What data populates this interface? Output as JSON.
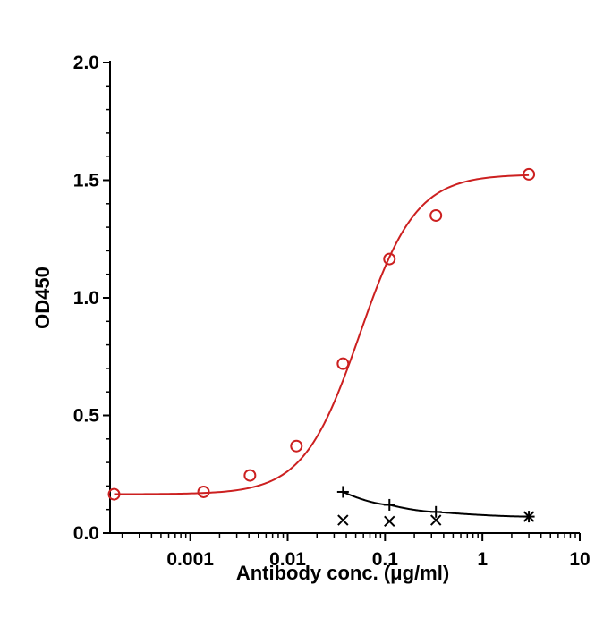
{
  "chart_data": {
    "type": "scatter",
    "title": "",
    "xlabel": "Antibody conc. (μg/ml)",
    "ylabel": "OD450",
    "x_scale": "log",
    "xlim": [
      0.00015,
      10
    ],
    "ylim": [
      0,
      2.0
    ],
    "grid": false,
    "x_ticks": [
      {
        "value": 0.001,
        "label": "0.001"
      },
      {
        "value": 0.01,
        "label": "0.01"
      },
      {
        "value": 0.1,
        "label": "0.1"
      },
      {
        "value": 1,
        "label": "1"
      },
      {
        "value": 10,
        "label": "10"
      }
    ],
    "y_ticks": [
      {
        "value": 0.0,
        "label": "0.0"
      },
      {
        "value": 0.5,
        "label": "0.5"
      },
      {
        "value": 1.0,
        "label": "1.0"
      },
      {
        "value": 1.5,
        "label": "1.5"
      },
      {
        "value": 2.0,
        "label": "2.0"
      }
    ],
    "series": [
      {
        "marker": "circle",
        "color": "#cc2020",
        "x": [
          0.000165,
          0.00137,
          0.0041,
          0.0123,
          0.037,
          0.111,
          0.333,
          3.0
        ],
        "y": [
          0.165,
          0.175,
          0.245,
          0.37,
          0.72,
          1.165,
          1.35,
          1.525
        ],
        "fit": {
          "bottom": 0.165,
          "top": 1.525,
          "ec50": 0.055,
          "hill": 1.5
        }
      },
      {
        "marker": "cross",
        "color": "#000000",
        "x": [
          0.037,
          0.111,
          0.333,
          3.0
        ],
        "y": [
          0.055,
          0.05,
          0.055,
          0.07
        ]
      },
      {
        "marker": "plus",
        "color": "#000000",
        "x": [
          0.037,
          0.111,
          0.333,
          3.0
        ],
        "y": [
          0.175,
          0.12,
          0.09,
          0.07
        ]
      }
    ]
  }
}
